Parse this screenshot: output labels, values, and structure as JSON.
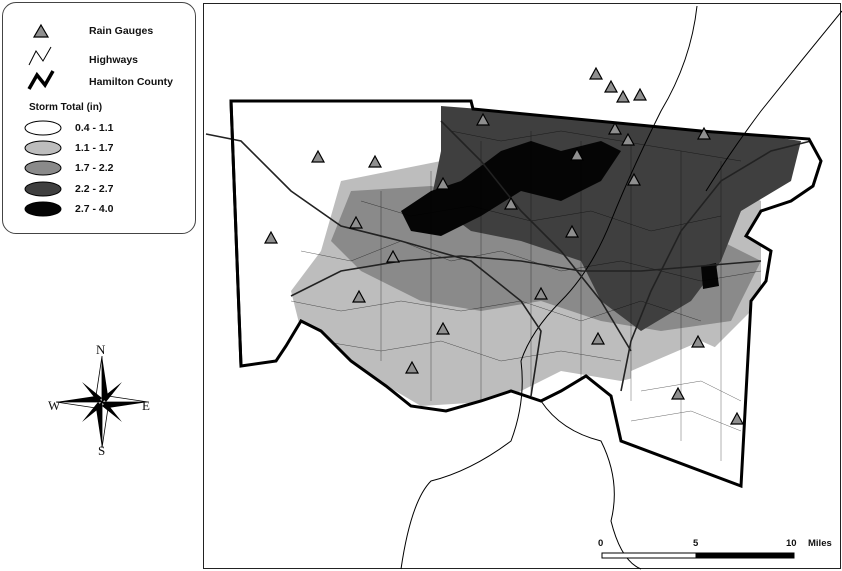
{
  "legend": {
    "rain_gauges": "Rain Gauges",
    "highways": "Highways",
    "county": "Hamilton County",
    "storm_title": "Storm Total (in)",
    "classes": [
      {
        "label": "0.4 - 1.1",
        "color": "#ffffff"
      },
      {
        "label": "1.1 - 1.7",
        "color": "#bdbdbd"
      },
      {
        "label": "1.7 - 2.2",
        "color": "#8a8a8a"
      },
      {
        "label": "2.2 - 2.7",
        "color": "#3f3f3f"
      },
      {
        "label": "2.7 - 4.0",
        "color": "#050505"
      }
    ]
  },
  "compass": {
    "n": "N",
    "s": "S",
    "e": "E",
    "w": "W"
  },
  "scale": {
    "zero": "0",
    "mid": "5",
    "max": "10",
    "units": "Miles"
  },
  "colors": {
    "gauge_fill": "#8f8f8f",
    "boundary": "#000000",
    "highway": "#222222",
    "river": "#000000"
  }
}
